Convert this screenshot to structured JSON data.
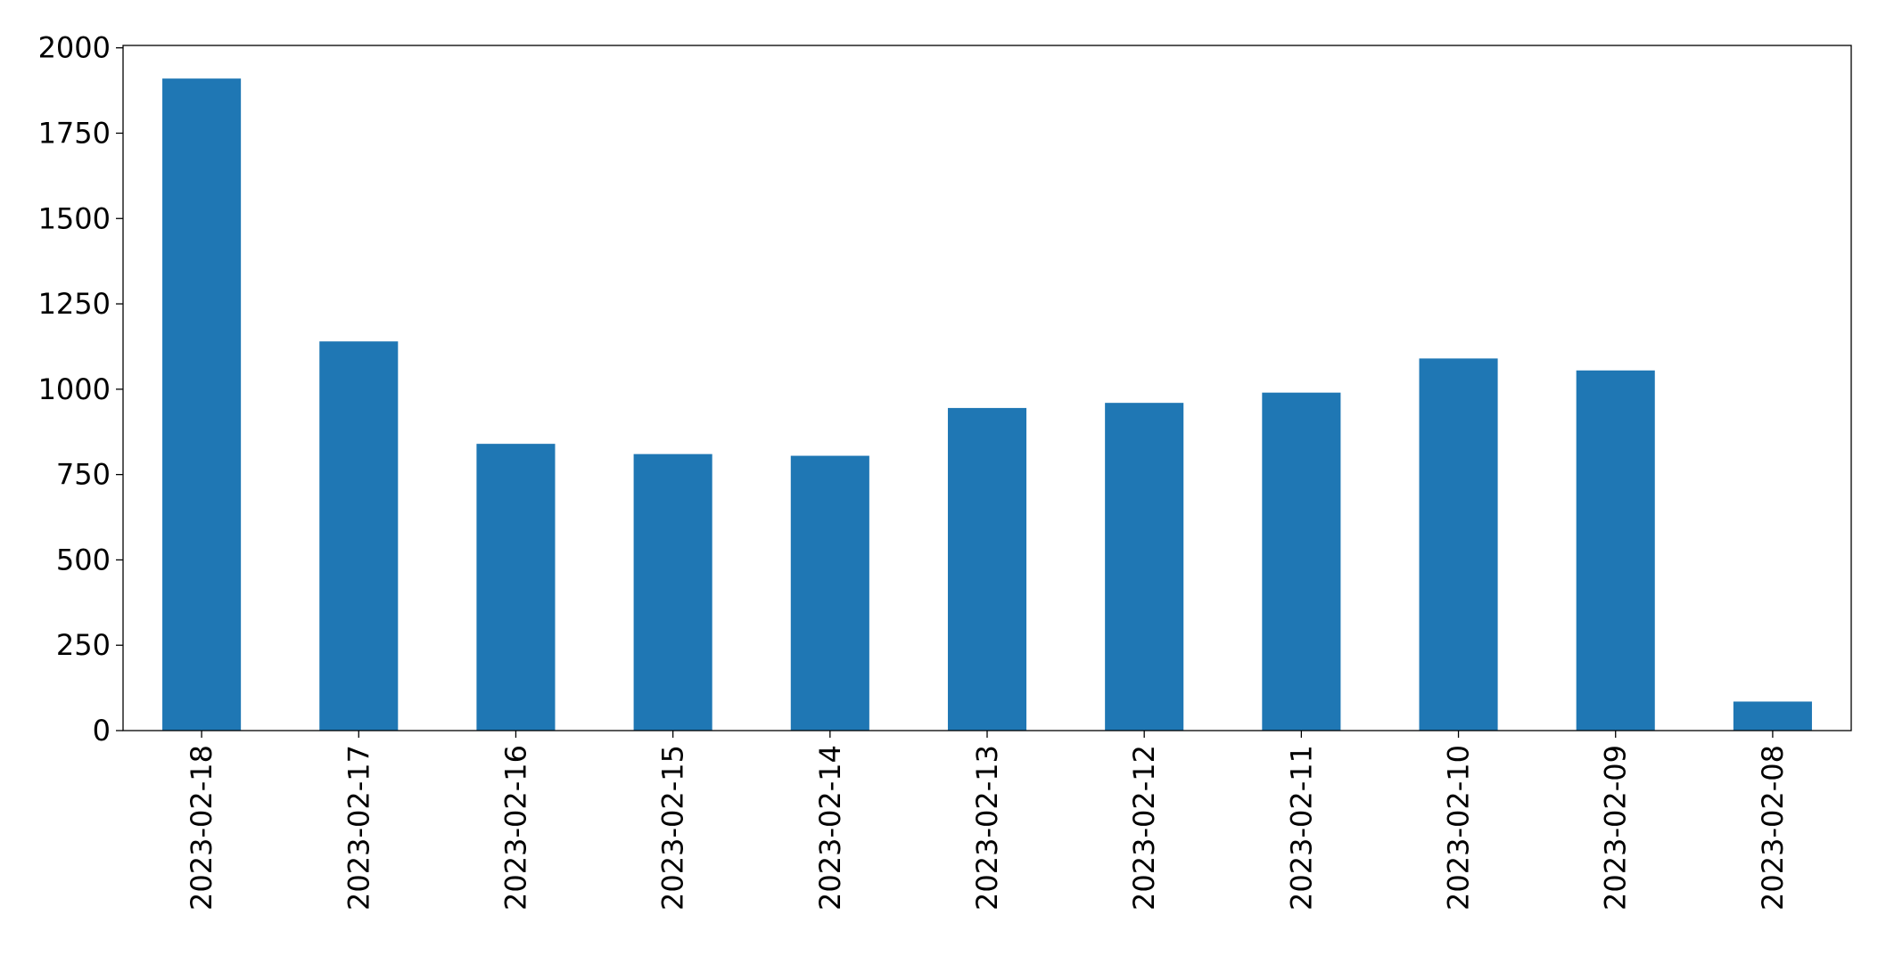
{
  "chart_data": {
    "type": "bar",
    "categories": [
      "2023-02-18",
      "2023-02-17",
      "2023-02-16",
      "2023-02-15",
      "2023-02-14",
      "2023-02-13",
      "2023-02-12",
      "2023-02-11",
      "2023-02-10",
      "2023-02-09",
      "2023-02-08"
    ],
    "values": [
      1910,
      1140,
      840,
      810,
      805,
      945,
      960,
      990,
      1090,
      1055,
      85
    ],
    "color": "#1f77b4",
    "ylim": [
      0,
      2007
    ],
    "yticks": [
      0,
      250,
      500,
      750,
      1000,
      1250,
      1500,
      1750,
      2000
    ],
    "grid": false
  }
}
